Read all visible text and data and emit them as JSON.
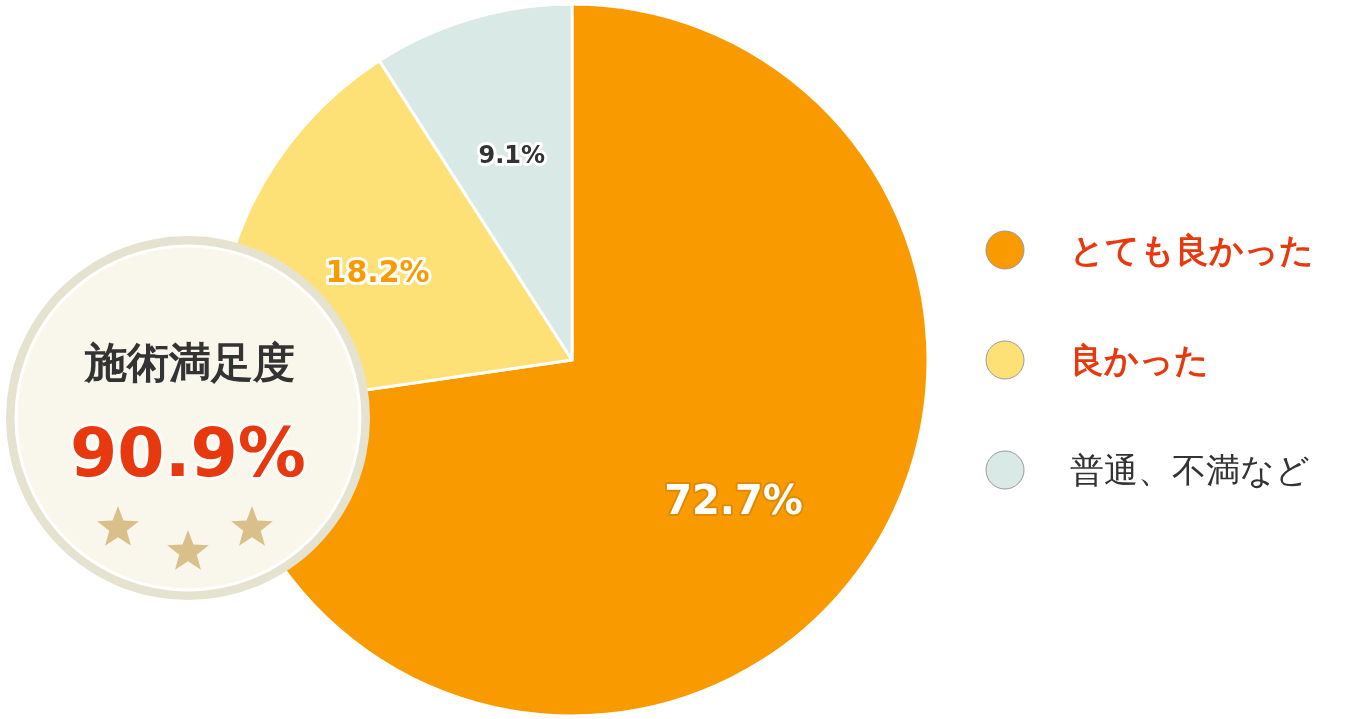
{
  "chart_data": {
    "type": "pie",
    "categories": [
      "とても良かった",
      "良かった",
      "普通、不満など"
    ],
    "values": [
      72.7,
      18.2,
      9.1
    ],
    "colors": [
      "#f99b00",
      "#fde176",
      "#d9e9e5"
    ],
    "value_labels": [
      "72.7%",
      "18.2%",
      "9.1%"
    ],
    "legend": "right",
    "annotations": [
      "施術満足度",
      "90.9%"
    ]
  }
}
